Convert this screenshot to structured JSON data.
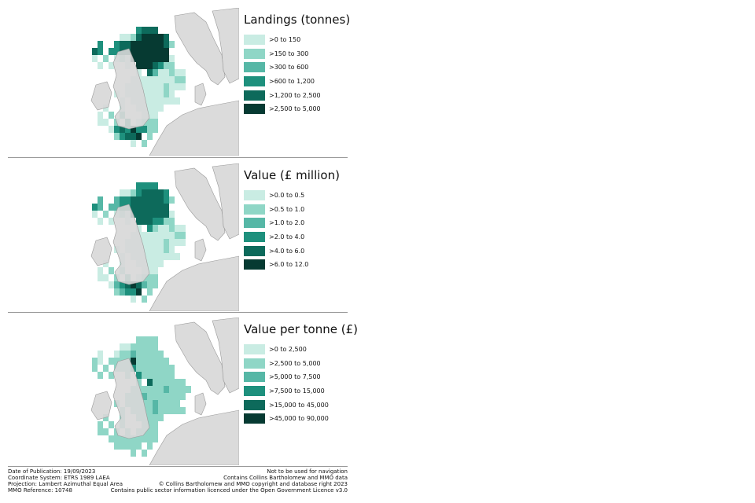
{
  "colors": {
    "bins": [
      "#c9ece3",
      "#8fd6c6",
      "#56b7a6",
      "#1e907d",
      "#0d6a5b",
      "#063a32"
    ],
    "land": "#d7d7d7",
    "coast": "#9a9a9a",
    "background": "#ffffff"
  },
  "panels": [
    {
      "title": "Landings (tonnes)",
      "legend": [
        ">0 to 150",
        ">150 to 300",
        ">300 to 600",
        ">600 to 1,200",
        ">1,200 to 2,500",
        ">2,500 to 5,000"
      ]
    },
    {
      "title": "Value (£ million)",
      "legend": [
        ">0.0 to 0.5",
        ">0.5 to 1.0",
        ">1.0 to 2.0",
        ">2.0 to 4.0",
        ">4.0 to 6.0",
        ">6.0 to 12.0"
      ]
    },
    {
      "title": "Value per tonne (£)",
      "legend": [
        ">0 to 2,500",
        ">2,500 to 5,000",
        ">5,000 to 7,500",
        ">7,500 to 15,000",
        ">15,000 to 45,000",
        ">45,000 to 90,000"
      ]
    }
  ],
  "footer": {
    "left": [
      "Date of Publication: 19/09/2023",
      "Coordinate System: ETRS 1989 LAEA",
      "Projection: Lambert Azimuthal Equal Area",
      "MMO Reference: 10748"
    ],
    "right": [
      "Not to be used for navigation",
      "Contains Collins Bartholomew and MMO data",
      "© Collins Bartholomew and MMO copyright and database right 2023",
      "Contains public sector information licenced under the Open Government Licence v3.0"
    ]
  }
}
